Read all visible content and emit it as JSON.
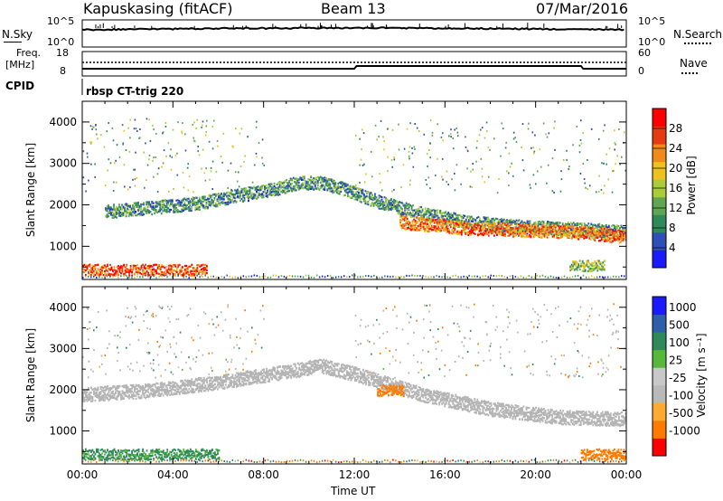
{
  "header": {
    "station": "Kapuskasing (fitACF)",
    "beam": "Beam 13",
    "date": "07/Mar/2016"
  },
  "summary_panels": {
    "nsky_label": "N.Sky",
    "nsearch_label": "N.Search",
    "noise_ticks": [
      "10^5",
      "10^0"
    ],
    "freq_label_1": "Freq.",
    "freq_label_2": "[MHz]",
    "freq_ticks": [
      "18",
      "8"
    ],
    "nave_label": "Nave",
    "nave_ticks": [
      "60",
      "0"
    ],
    "cpid_label": "CPID",
    "cpid_value": "rbsp CT-trig 220"
  },
  "colors": {
    "power_scale": [
      "#1a1aff",
      "#2f4fb8",
      "#2f8a5a",
      "#5fa552",
      "#a8cc3a",
      "#f0c020",
      "#f08a1a",
      "#e83a10",
      "#ff0000"
    ],
    "velocity_scale": [
      "#ff0000",
      "#ff7a00",
      "#ffaa30",
      "#b9b9b9",
      "#c8c8c8",
      "#57b93a",
      "#2f8a5a",
      "#2e5fa8",
      "#1a1aff"
    ],
    "ground_scatter": "#b4b4b4"
  },
  "chart_data": [
    {
      "type": "heatmap",
      "panel": "power",
      "ylabel": "Slant Range [km]",
      "yticks": [
        "1000",
        "2000",
        "3000",
        "4000"
      ],
      "ylim": [
        200,
        4500
      ],
      "xlim": [
        0,
        24
      ],
      "colorbar_label": "Power [dB]",
      "colorbar_ticks": [
        "4",
        "8",
        "12",
        "16",
        "20",
        "24",
        "28"
      ],
      "colorbar_range": [
        0,
        32
      ],
      "features": [
        {
          "name": "main scatter band",
          "t": [
            1,
            3,
            5,
            7,
            8.5,
            9.5,
            10.5,
            11.5,
            13,
            15,
            17,
            19,
            21,
            23,
            24
          ],
          "r": [
            1850,
            1950,
            2050,
            2250,
            2400,
            2550,
            2550,
            2400,
            2100,
            1800,
            1600,
            1500,
            1450,
            1400,
            1350
          ],
          "power": 10
        },
        {
          "name": "strong late band",
          "t": [
            14,
            17,
            20,
            22,
            24
          ],
          "r": [
            1600,
            1450,
            1400,
            1350,
            1250
          ],
          "power": 24
        },
        {
          "name": "near-range echoes",
          "t": [
            0,
            2,
            4,
            5.5
          ],
          "r": [
            450,
            450,
            450,
            450
          ],
          "power": 26
        },
        {
          "name": "late near-range patch",
          "t": [
            21.5,
            23
          ],
          "r": [
            550,
            550
          ],
          "power": 14
        }
      ]
    },
    {
      "type": "heatmap",
      "panel": "velocity",
      "ylabel": "Slant Range [km]",
      "yticks": [
        "1000",
        "2000",
        "3000",
        "4000"
      ],
      "ylim": [
        200,
        4500
      ],
      "xlim": [
        0,
        24
      ],
      "xlabel": "Time UT",
      "xticks": [
        "00:00",
        "04:00",
        "08:00",
        "12:00",
        "16:00",
        "20:00",
        "00:00"
      ],
      "colorbar_label": "Velocity [m s⁻¹]",
      "colorbar_ticks": [
        "1000",
        "500",
        "100",
        "25",
        "-25",
        "-100",
        "-500",
        "-1000"
      ],
      "colorbar_range": [
        -1000,
        1000
      ],
      "features": [
        {
          "name": "ground scatter arc",
          "t": [
            0,
            3,
            6,
            9,
            10.5,
            12,
            15,
            18,
            21,
            24
          ],
          "r": [
            1900,
            2000,
            2200,
            2450,
            2600,
            2400,
            1900,
            1550,
            1350,
            1300
          ],
          "velocity": 0
        },
        {
          "name": "positive near-range band",
          "t": [
            0,
            2,
            4,
            6
          ],
          "r": [
            450,
            450,
            450,
            450
          ],
          "velocity": 150
        },
        {
          "name": "negative patch 13-14h",
          "t": [
            13,
            14.2
          ],
          "r": [
            2000,
            2000
          ],
          "velocity": -400
        },
        {
          "name": "negative patch 22-24h",
          "t": [
            22,
            24
          ],
          "r": [
            450,
            450
          ],
          "velocity": -300
        }
      ]
    }
  ]
}
